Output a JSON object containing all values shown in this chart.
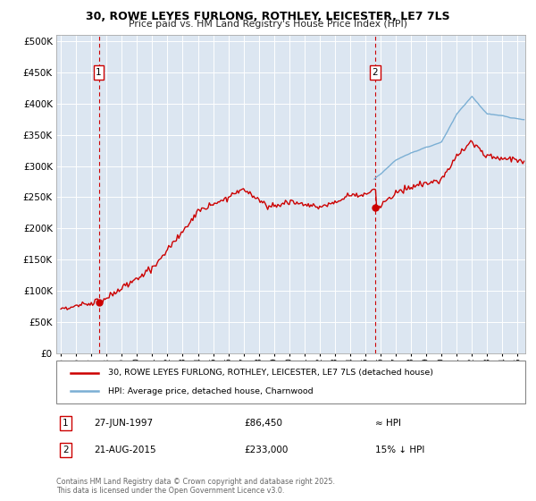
{
  "title_line1": "30, ROWE LEYES FURLONG, ROTHLEY, LEICESTER, LE7 7LS",
  "title_line2": "Price paid vs. HM Land Registry's House Price Index (HPI)",
  "plot_bg_color": "#dce6f1",
  "red_line_color": "#cc0000",
  "blue_line_color": "#7bafd4",
  "marker1_x": 1997.49,
  "marker2_x": 2015.64,
  "marker1_value": 86450,
  "marker2_value": 233000,
  "yticks": [
    0,
    50000,
    100000,
    150000,
    200000,
    250000,
    300000,
    350000,
    400000,
    450000,
    500000
  ],
  "ylim": [
    0,
    510000
  ],
  "xlim_start": 1994.7,
  "xlim_end": 2025.5,
  "legend_label_red": "30, ROWE LEYES FURLONG, ROTHLEY, LEICESTER, LE7 7LS (detached house)",
  "legend_label_blue": "HPI: Average price, detached house, Charnwood",
  "annotation1_date": "27-JUN-1997",
  "annotation1_price": "£86,450",
  "annotation1_hpi": "≈ HPI",
  "annotation2_date": "21-AUG-2015",
  "annotation2_price": "£233,000",
  "annotation2_hpi": "15% ↓ HPI",
  "footer": "Contains HM Land Registry data © Crown copyright and database right 2025.\nThis data is licensed under the Open Government Licence v3.0."
}
